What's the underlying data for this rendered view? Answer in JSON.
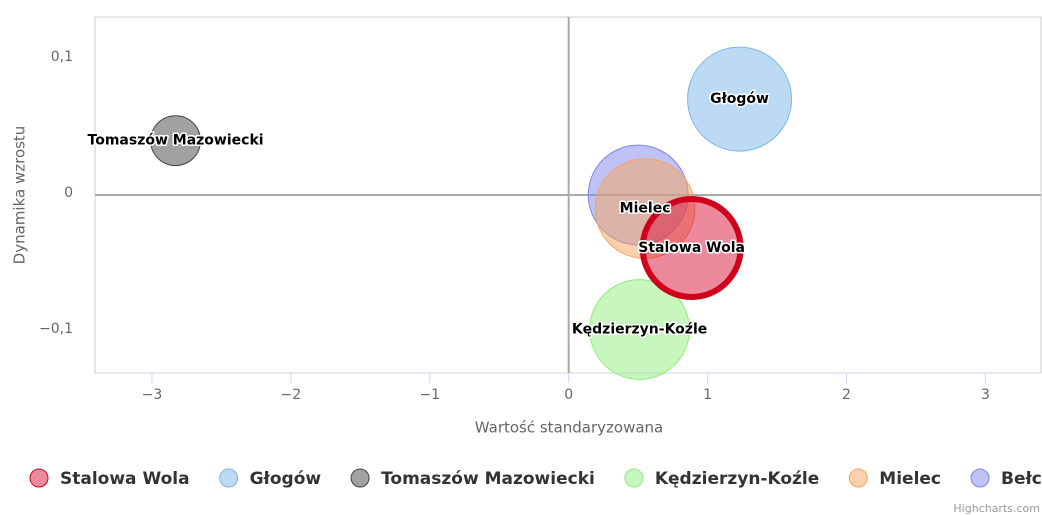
{
  "chart_data": {
    "type": "bubble",
    "x_label": "Wartość standaryzowana",
    "y_label": "Dynamika wzrostu",
    "xlim": [
      -3.41,
      3.4
    ],
    "ylim": [
      -0.131,
      0.131
    ],
    "xticks": [
      {
        "value": -3,
        "label": "−3"
      },
      {
        "value": -2,
        "label": "−2"
      },
      {
        "value": -1,
        "label": "−1"
      },
      0,
      1,
      2,
      3
    ],
    "yticks": [
      {
        "value": -0.1,
        "label": "−0,1"
      },
      {
        "value": 0,
        "label": "0"
      },
      {
        "value": 0.1,
        "label": "0,1"
      }
    ],
    "plot_lines": {
      "x": 0,
      "y": 0
    },
    "legend": "bottom",
    "credits": "Highcharts.com",
    "series": [
      {
        "name": "Stalowa Wola",
        "color": "#dc143c",
        "x": [
          0.885
        ],
        "values": [
          -0.039
        ],
        "sizes": [
          100
        ]
      },
      {
        "name": "Głogów",
        "color": "#7cb5ec",
        "x": [
          1.23
        ],
        "values": [
          0.0706
        ],
        "sizes": [
          100
        ]
      },
      {
        "name": "Tomaszów Mazowiecki",
        "color": "#434348",
        "x": [
          -2.83
        ],
        "values": [
          0.04
        ],
        "sizes": [
          23
        ]
      },
      {
        "name": "Kędzierzyn-Koźle",
        "color": "#90ed7d",
        "x": [
          0.51
        ],
        "values": [
          -0.099
        ],
        "sizes": [
          92
        ]
      },
      {
        "name": "Mielec",
        "color": "#f7a35c",
        "x": [
          0.55
        ],
        "values": [
          -0.01
        ],
        "sizes": [
          92
        ]
      },
      {
        "name": "Bełchatów",
        "color": "#8085e9",
        "x": [
          0.5
        ],
        "values": [
          0.0
        ],
        "sizes": [
          92
        ]
      }
    ]
  }
}
